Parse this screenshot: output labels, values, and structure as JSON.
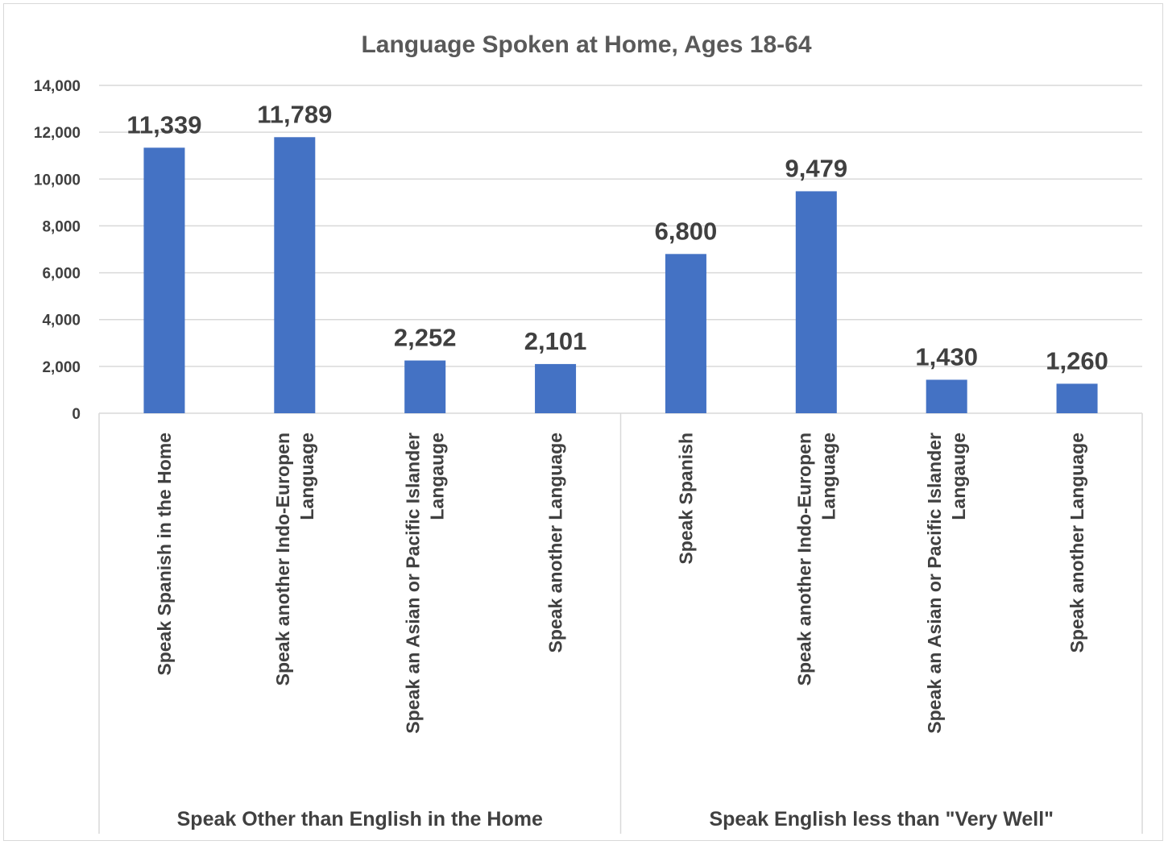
{
  "chart_data": {
    "type": "bar",
    "title": "Language Spoken at Home, Ages 18-64",
    "xlabel": "",
    "ylabel": "",
    "ylim": [
      0,
      14000
    ],
    "yticks": [
      0,
      2000,
      4000,
      6000,
      8000,
      10000,
      12000,
      14000
    ],
    "ytick_labels": [
      "0",
      "2,000",
      "4,000",
      "6,000",
      "8,000",
      "10,000",
      "12,000",
      "14,000"
    ],
    "grid": true,
    "legend": "none",
    "bar_color": "#4472c4",
    "groups": [
      {
        "name": "Speak Other than English in the Home",
        "categories": [
          "Speak Spanish in the Home",
          "Speak another Indo-Europen Language",
          "Speak an Asian or Pacific Islander Langauge",
          "Speak another Language"
        ],
        "category_lines": [
          [
            "Speak Spanish in the Home"
          ],
          [
            "Speak another Indo-Europen",
            "Language"
          ],
          [
            "Speak an Asian or Pacific Islander",
            "Langauge"
          ],
          [
            "Speak another Language"
          ]
        ],
        "values": [
          11339,
          11789,
          2252,
          2101
        ],
        "value_labels": [
          "11,339",
          "11,789",
          "2,252",
          "2,101"
        ]
      },
      {
        "name": "Speak English less than \"Very Well\"",
        "categories": [
          "Speak Spanish",
          "Speak another Indo-Europen Language",
          "Speak an Asian or Pacific Islander Langauge",
          "Speak another Language"
        ],
        "category_lines": [
          [
            "Speak Spanish"
          ],
          [
            "Speak another Indo-Europen",
            "Language"
          ],
          [
            "Speak an Asian or Pacific Islander",
            "Langauge"
          ],
          [
            "Speak another Language"
          ]
        ],
        "values": [
          6800,
          9479,
          1430,
          1260
        ],
        "value_labels": [
          "6,800",
          "9,479",
          "1,430",
          "1,260"
        ]
      }
    ]
  }
}
